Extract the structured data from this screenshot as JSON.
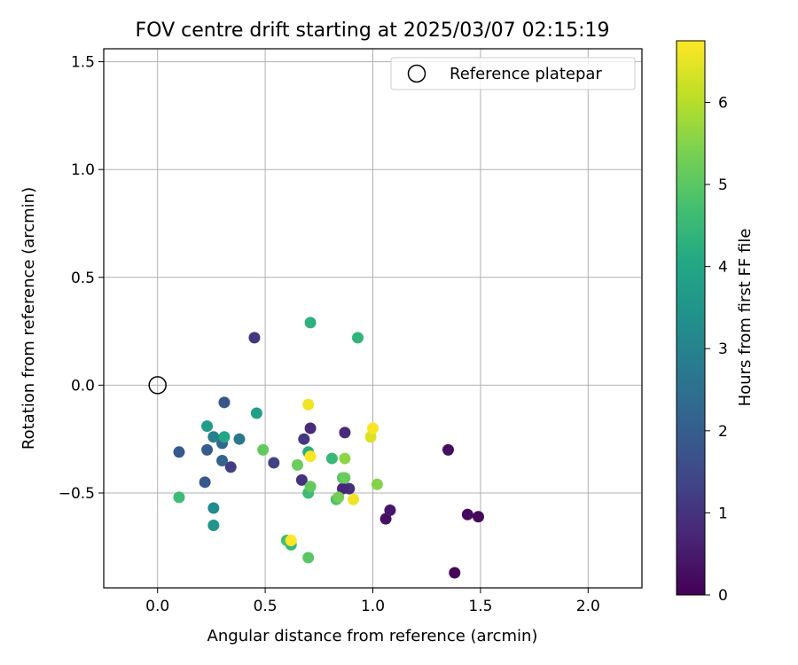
{
  "chart_data": {
    "type": "scatter",
    "title": "FOV centre drift starting at 2025/03/07 02:15:19",
    "xlabel": "Angular distance from reference (arcmin)",
    "ylabel": "Rotation from reference (arcmin)",
    "xlim": [
      -0.25,
      2.25
    ],
    "ylim": [
      -0.94,
      1.56
    ],
    "xticks": [
      "0.0",
      "0.5",
      "1.0",
      "1.5",
      "2.0"
    ],
    "xtick_values": [
      0.0,
      0.5,
      1.0,
      1.5,
      2.0
    ],
    "yticks": [
      "−0.5",
      "0.0",
      "0.5",
      "1.0",
      "1.5"
    ],
    "ytick_values": [
      -0.5,
      0.0,
      0.5,
      1.0,
      1.5
    ],
    "grid": true,
    "legend_position": "top-right",
    "legend": [
      {
        "label": "Reference platepar",
        "marker": "open-circle"
      }
    ],
    "reference_point": {
      "x": 0.0,
      "y": 0.0,
      "label": "Reference platepar"
    },
    "colorbar": {
      "label": "Hours from first FF file",
      "colormap": "viridis",
      "range": [
        0,
        6.75
      ],
      "ticks": [
        "0",
        "1",
        "2",
        "3",
        "4",
        "5",
        "6"
      ],
      "tick_values": [
        0,
        1,
        2,
        3,
        4,
        5,
        6
      ]
    },
    "points": [
      {
        "x": 1.38,
        "y": -0.87,
        "c": 0.1
      },
      {
        "x": 1.44,
        "y": -0.6,
        "c": 0.2
      },
      {
        "x": 1.49,
        "y": -0.61,
        "c": 0.15
      },
      {
        "x": 1.35,
        "y": -0.3,
        "c": 0.25
      },
      {
        "x": 1.06,
        "y": -0.62,
        "c": 0.3
      },
      {
        "x": 1.08,
        "y": -0.58,
        "c": 0.4
      },
      {
        "x": 0.87,
        "y": -0.22,
        "c": 0.8
      },
      {
        "x": 0.89,
        "y": -0.48,
        "c": 0.9
      },
      {
        "x": 0.86,
        "y": -0.48,
        "c": 0.7
      },
      {
        "x": 0.71,
        "y": -0.2,
        "c": 0.85
      },
      {
        "x": 0.68,
        "y": -0.25,
        "c": 1.1
      },
      {
        "x": 0.67,
        "y": -0.44,
        "c": 1.0
      },
      {
        "x": 0.45,
        "y": 0.22,
        "c": 1.05
      },
      {
        "x": 0.54,
        "y": -0.36,
        "c": 1.3
      },
      {
        "x": 0.34,
        "y": -0.38,
        "c": 1.2
      },
      {
        "x": 0.31,
        "y": -0.08,
        "c": 1.8
      },
      {
        "x": 0.1,
        "y": -0.31,
        "c": 1.9
      },
      {
        "x": 0.23,
        "y": -0.3,
        "c": 1.95
      },
      {
        "x": 0.22,
        "y": -0.45,
        "c": 1.85
      },
      {
        "x": 0.3,
        "y": -0.35,
        "c": 2.2
      },
      {
        "x": 0.3,
        "y": -0.27,
        "c": 2.3
      },
      {
        "x": 0.38,
        "y": -0.25,
        "c": 2.7
      },
      {
        "x": 0.26,
        "y": -0.24,
        "c": 2.9
      },
      {
        "x": 0.26,
        "y": -0.57,
        "c": 3.2
      },
      {
        "x": 0.26,
        "y": -0.65,
        "c": 3.5
      },
      {
        "x": 0.23,
        "y": -0.19,
        "c": 3.7
      },
      {
        "x": 0.31,
        "y": -0.24,
        "c": 4.0
      },
      {
        "x": 0.46,
        "y": -0.13,
        "c": 3.8
      },
      {
        "x": 0.71,
        "y": 0.29,
        "c": 4.3
      },
      {
        "x": 0.93,
        "y": 0.22,
        "c": 4.4
      },
      {
        "x": 0.1,
        "y": -0.52,
        "c": 4.6
      },
      {
        "x": 0.7,
        "y": -0.31,
        "c": 4.2
      },
      {
        "x": 0.81,
        "y": -0.34,
        "c": 4.5
      },
      {
        "x": 0.62,
        "y": -0.74,
        "c": 4.5
      },
      {
        "x": 0.6,
        "y": -0.72,
        "c": 4.7
      },
      {
        "x": 0.7,
        "y": -0.5,
        "c": 4.6
      },
      {
        "x": 0.83,
        "y": -0.53,
        "c": 4.8
      },
      {
        "x": 0.86,
        "y": -0.43,
        "c": 4.9
      },
      {
        "x": 0.49,
        "y": -0.3,
        "c": 5.1
      },
      {
        "x": 0.65,
        "y": -0.37,
        "c": 5.2
      },
      {
        "x": 0.71,
        "y": -0.47,
        "c": 5.1
      },
      {
        "x": 0.7,
        "y": -0.8,
        "c": 5.0
      },
      {
        "x": 0.84,
        "y": -0.52,
        "c": 5.3
      },
      {
        "x": 0.87,
        "y": -0.43,
        "c": 5.2
      },
      {
        "x": 0.87,
        "y": -0.34,
        "c": 5.6
      },
      {
        "x": 1.02,
        "y": -0.46,
        "c": 5.5
      },
      {
        "x": 0.7,
        "y": -0.09,
        "c": 6.6
      },
      {
        "x": 0.71,
        "y": -0.33,
        "c": 6.7
      },
      {
        "x": 0.62,
        "y": -0.72,
        "c": 6.8
      },
      {
        "x": 0.91,
        "y": -0.53,
        "c": 6.6
      },
      {
        "x": 0.99,
        "y": -0.24,
        "c": 6.4
      },
      {
        "x": 1.0,
        "y": -0.2,
        "c": 6.7
      }
    ]
  }
}
